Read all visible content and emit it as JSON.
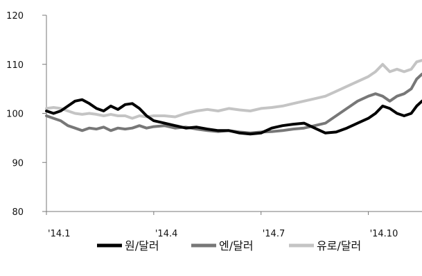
{
  "chart_data": {
    "type": "line",
    "title": "",
    "xlabel": "",
    "ylabel": "",
    "ylim": [
      80,
      120
    ],
    "yticks": [
      80,
      90,
      100,
      110,
      120
    ],
    "x_range": [
      0,
      10.5
    ],
    "xticks": [
      {
        "x": 0,
        "label": "'14.1"
      },
      {
        "x": 3,
        "label": "'14.4"
      },
      {
        "x": 6,
        "label": "'14.7"
      },
      {
        "x": 9,
        "label": "'14.10"
      }
    ],
    "grid": false,
    "legend_position": "bottom",
    "series": [
      {
        "name": "원/달러",
        "color": "#000000",
        "x": [
          0,
          0.2,
          0.4,
          0.6,
          0.8,
          1.0,
          1.2,
          1.4,
          1.6,
          1.8,
          2.0,
          2.2,
          2.4,
          2.6,
          2.8,
          3.0,
          3.3,
          3.6,
          3.9,
          4.2,
          4.5,
          4.8,
          5.1,
          5.4,
          5.7,
          6.0,
          6.3,
          6.6,
          6.9,
          7.2,
          7.5,
          7.8,
          8.1,
          8.4,
          8.7,
          9.0,
          9.2,
          9.4,
          9.6,
          9.8,
          10.0,
          10.2,
          10.35,
          10.5
        ],
        "values": [
          100.5,
          100,
          100.5,
          101.5,
          102.5,
          102.8,
          102,
          101,
          100.5,
          101.5,
          100.8,
          101.8,
          102,
          101,
          99.5,
          98.5,
          98,
          97.5,
          97,
          97.2,
          96.8,
          96.5,
          96.5,
          96,
          95.8,
          96,
          97,
          97.5,
          97.8,
          98,
          97,
          96,
          96.2,
          97,
          98,
          99,
          100,
          101.5,
          101,
          100,
          99.5,
          100,
          101.5,
          102.5
        ]
      },
      {
        "name": "엔/달러",
        "color": "#777777",
        "x": [
          0,
          0.2,
          0.4,
          0.6,
          0.8,
          1.0,
          1.2,
          1.4,
          1.6,
          1.8,
          2.0,
          2.2,
          2.4,
          2.6,
          2.8,
          3.0,
          3.3,
          3.6,
          3.9,
          4.2,
          4.5,
          4.8,
          5.1,
          5.4,
          5.7,
          6.0,
          6.3,
          6.6,
          6.9,
          7.2,
          7.5,
          7.8,
          8.1,
          8.4,
          8.7,
          9.0,
          9.2,
          9.4,
          9.6,
          9.8,
          10.0,
          10.2,
          10.35,
          10.5
        ],
        "values": [
          99.5,
          99,
          98.5,
          97.5,
          97,
          96.5,
          97,
          96.8,
          97.2,
          96.5,
          97,
          96.8,
          97,
          97.5,
          97,
          97.3,
          97.5,
          97,
          97.2,
          96.8,
          96.5,
          96.3,
          96.5,
          96.2,
          96,
          96.2,
          96.3,
          96.5,
          96.8,
          97,
          97.5,
          98,
          99.5,
          101,
          102.5,
          103.5,
          104,
          103.5,
          102.5,
          103.5,
          104,
          105,
          107,
          108
        ]
      },
      {
        "name": "유로/달러",
        "color": "#c4c4c4",
        "x": [
          0,
          0.2,
          0.4,
          0.6,
          0.8,
          1.0,
          1.2,
          1.4,
          1.6,
          1.8,
          2.0,
          2.2,
          2.4,
          2.6,
          2.8,
          3.0,
          3.3,
          3.6,
          3.9,
          4.2,
          4.5,
          4.8,
          5.1,
          5.4,
          5.7,
          6.0,
          6.3,
          6.6,
          6.9,
          7.2,
          7.5,
          7.8,
          8.1,
          8.4,
          8.7,
          9.0,
          9.2,
          9.4,
          9.6,
          9.8,
          10.0,
          10.2,
          10.35,
          10.5
        ],
        "values": [
          101,
          101.2,
          101,
          100.5,
          100,
          99.8,
          100,
          99.8,
          99.5,
          99.8,
          99.5,
          99.5,
          99,
          99.5,
          99.3,
          99.5,
          99.5,
          99.3,
          100,
          100.5,
          100.8,
          100.5,
          101,
          100.7,
          100.5,
          101,
          101.2,
          101.5,
          102,
          102.5,
          103,
          103.5,
          104.5,
          105.5,
          106.5,
          107.5,
          108.5,
          110,
          108.5,
          109,
          108.5,
          109,
          110.5,
          110.8
        ]
      }
    ]
  }
}
